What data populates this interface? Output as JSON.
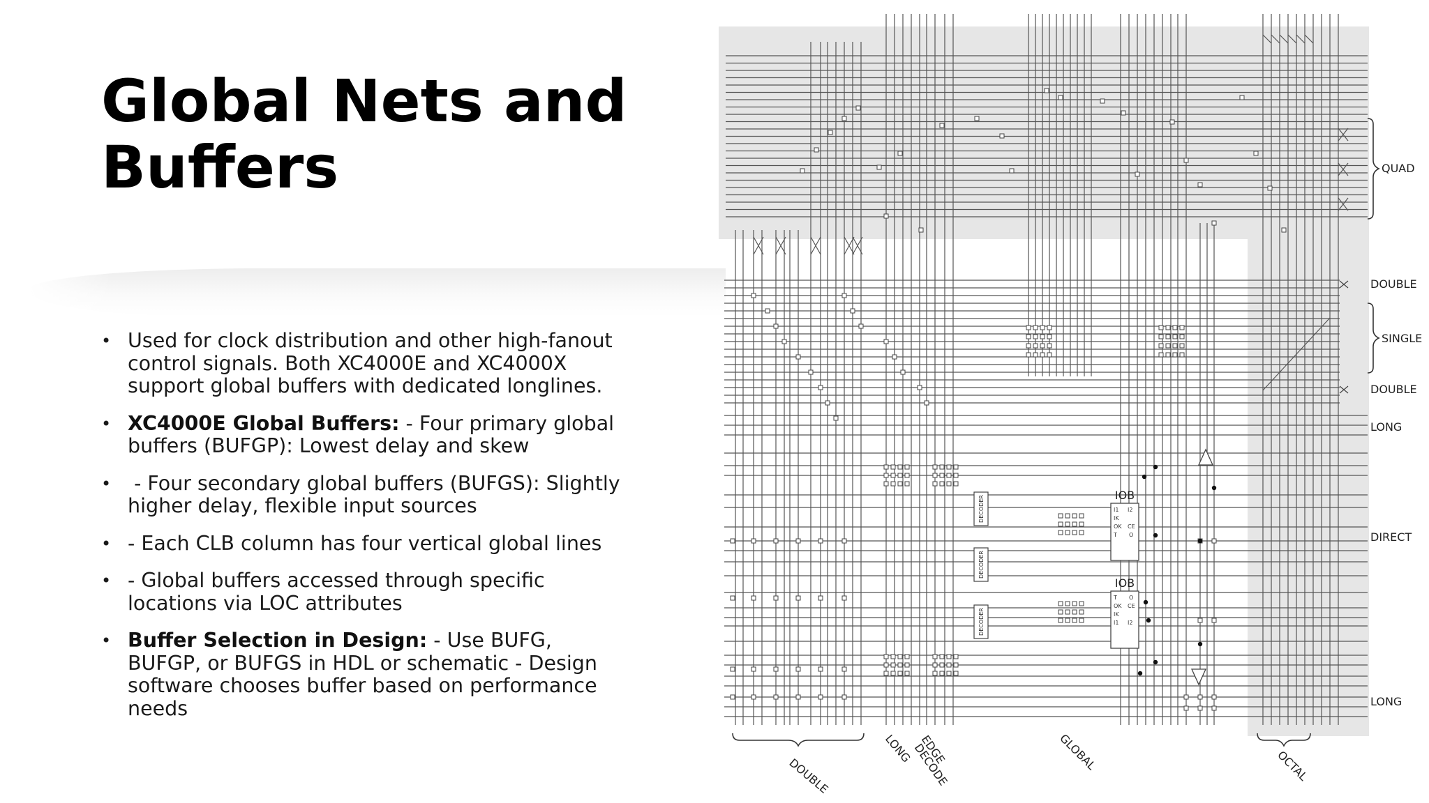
{
  "slide": {
    "title": "Global Nets and Buffers",
    "bullets": [
      {
        "lead": "",
        "text": "Used for clock distribution and other high-fanout control signals. Both XC4000E and XC4000X support global buffers with dedicated longlines."
      },
      {
        "lead": "XC4000E Global Buffers:",
        "text": " - Four primary global buffers (BUFGP): Lowest delay and skew"
      },
      {
        "lead": "",
        "text": " - Four secondary global buffers (BUFGS): Slightly higher delay, flexible input sources"
      },
      {
        "lead": "",
        "text": "- Each CLB column has four vertical global lines"
      },
      {
        "lead": "",
        "text": "- Global buffers accessed through specific locations via LOC attributes"
      },
      {
        "lead": "Buffer Selection in Design:",
        "text": " - Use BUFG, BUFGP, or BUFGS in HDL or schematic - Design software chooses buffer based on performance needs"
      }
    ],
    "bullet_symbol": "•"
  },
  "diagram": {
    "right_labels": {
      "quad": "QUAD",
      "double_top": "DOUBLE",
      "single": "SINGLE",
      "double_bottom": "DOUBLE",
      "long_top": "LONG",
      "direct": "DIRECT",
      "long_bottom": "LONG"
    },
    "bottom_labels": {
      "double": "DOUBLE",
      "long": "LONG",
      "edge_decode_1": "EDGE",
      "edge_decode_2": "DECODE",
      "global": "GLOBAL",
      "octal": "OCTAL"
    },
    "blocks": {
      "iob_top": "IOB",
      "iob_bottom": "IOB",
      "decoder": "DECODER",
      "iob_top_pins_left": [
        "I1",
        "IK",
        "OK",
        "T"
      ],
      "iob_top_pins_right": [
        "I2",
        "CE",
        "O"
      ],
      "iob_bottom_pins_left": [
        "T",
        "OK",
        "IK",
        "I1"
      ],
      "iob_bottom_pins_right": [
        "O",
        "CE",
        "I2"
      ]
    },
    "colors": {
      "shade": "#e6e6e6",
      "line": "#555555"
    }
  }
}
